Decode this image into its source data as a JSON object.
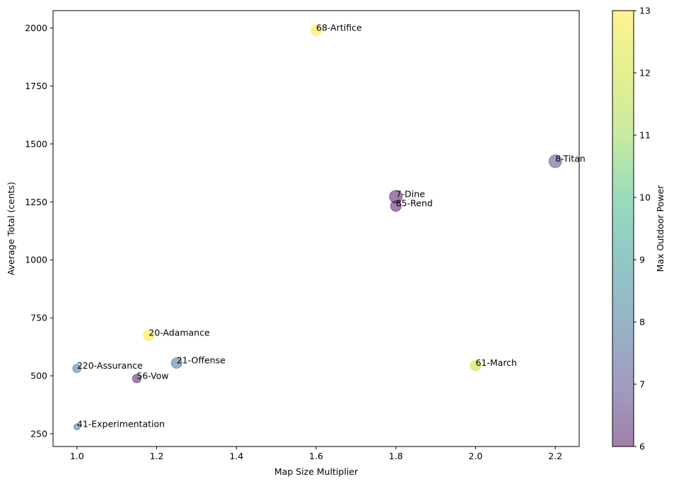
{
  "chart_data": {
    "type": "scatter",
    "xlabel": "Map Size Multiplier",
    "ylabel": "Average Total (cents)",
    "xlim": [
      0.94,
      2.26
    ],
    "ylim": [
      195,
      2075
    ],
    "xticks": [
      1.0,
      1.2,
      1.4,
      1.6,
      1.8,
      2.0,
      2.2
    ],
    "yticks": [
      250,
      500,
      750,
      1000,
      1250,
      1500,
      1750,
      2000
    ],
    "colorbar": {
      "label": "Max Outdoor Power",
      "min": 6,
      "max": 13,
      "ticks": [
        6,
        7,
        8,
        9,
        10,
        11,
        12,
        13
      ],
      "colormap": "viridis",
      "alpha": 0.5
    },
    "points": [
      {
        "label": "68-Artifice",
        "x": 1.6,
        "y": 1990,
        "color_value": 13,
        "size": 2
      },
      {
        "label": "8-Titan",
        "x": 2.2,
        "y": 1425,
        "color_value": 7,
        "size": 3
      },
      {
        "label": "7-Dine",
        "x": 1.8,
        "y": 1272,
        "color_value": 6,
        "size": 3
      },
      {
        "label": "85-Rend",
        "x": 1.8,
        "y": 1232,
        "color_value": 6,
        "size": 2
      },
      {
        "label": "20-Adamance",
        "x": 1.18,
        "y": 674,
        "color_value": 13,
        "size": 2
      },
      {
        "label": "21-Offense",
        "x": 1.25,
        "y": 555,
        "color_value": 8,
        "size": 2
      },
      {
        "label": "61-March",
        "x": 2.0,
        "y": 544,
        "color_value": 12,
        "size": 2
      },
      {
        "label": "220-Assurance",
        "x": 1.0,
        "y": 532,
        "color_value": 8,
        "size": 1
      },
      {
        "label": "56-Vow",
        "x": 1.15,
        "y": 488,
        "color_value": 6,
        "size": 1
      },
      {
        "label": "41-Experimentation",
        "x": 1.0,
        "y": 280,
        "color_value": 8,
        "size": 0
      }
    ]
  }
}
